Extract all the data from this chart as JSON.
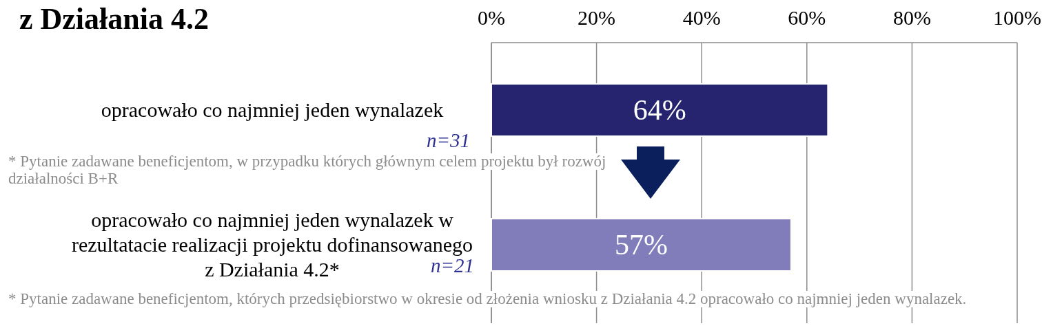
{
  "chart_data": {
    "type": "bar",
    "orientation": "horizontal",
    "title": "z Działania 4.2",
    "categories": [
      "opracowało co najmniej jeden wynalazek",
      "opracowało co najmniej jeden wynalazek w rezultatacie realizacji projektu dofinansowanego z Działania 4.2*"
    ],
    "values": [
      64,
      57
    ],
    "colors": [
      "#26246e",
      "#817dba"
    ],
    "value_labels": [
      "64%",
      "57%"
    ],
    "xlim": [
      0,
      100
    ],
    "xticks": [
      {
        "value": 0,
        "label": "0%"
      },
      {
        "value": 20,
        "label": "20%"
      },
      {
        "value": 40,
        "label": "40%"
      },
      {
        "value": 60,
        "label": "60%"
      },
      {
        "value": 80,
        "label": "80%"
      },
      {
        "value": 100,
        "label": "100%"
      }
    ],
    "grid": "x",
    "annotations": [
      "n=31",
      "n=21",
      "* Pytanie zadawane beneficjentom, w przypadku których głównym celem projektu był rozwój działalności B+R",
      "* Pytanie zadawane beneficjentom, których przedsiębiorstwo w okresie od złożenia wniosku z Działania 4.2 opracowało co najmniej jeden wynalazek."
    ]
  }
}
